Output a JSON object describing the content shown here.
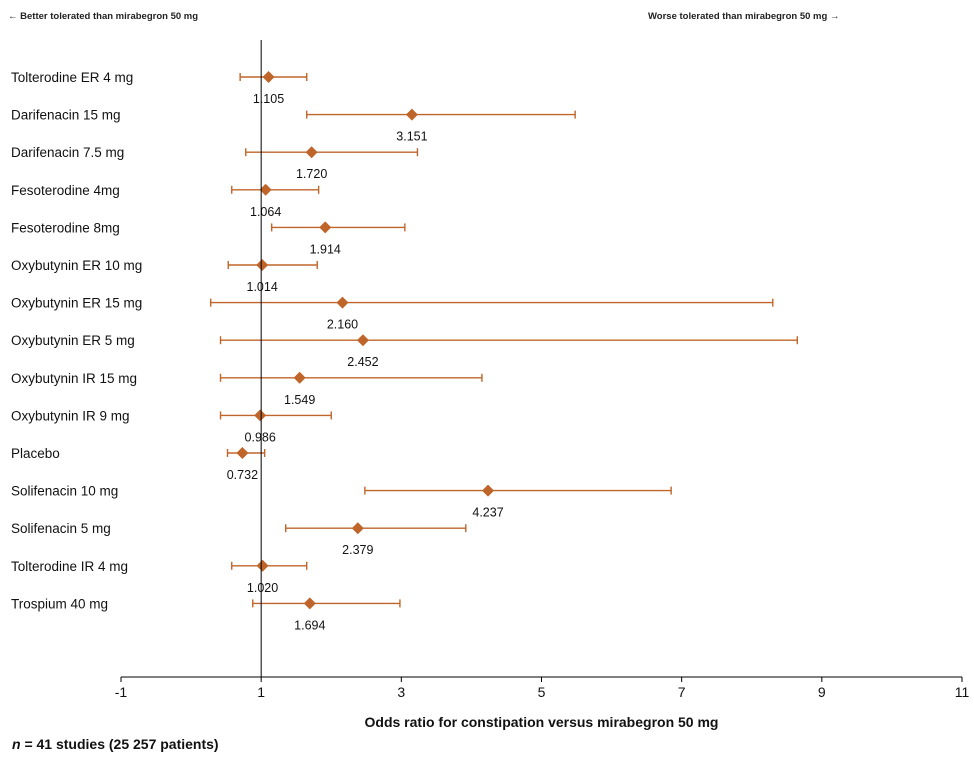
{
  "header": {
    "left_note": "← Better tolerated than mirabegron 50 mg",
    "right_note": "Worse tolerated than mirabegron 50 mg →"
  },
  "footnote": {
    "n_symbol": "n",
    "text": " = 41 studies (25 257 patients)"
  },
  "colors": {
    "marker": "#c0652a",
    "axis": "#000000"
  },
  "chart_data": {
    "type": "forest",
    "xlabel": "Odds ratio for constipation versus mirabegron 50 mg",
    "xlim": [
      -1,
      11
    ],
    "xticks": [
      -1,
      1,
      3,
      5,
      7,
      9,
      11
    ],
    "reference_line": 1,
    "grid": false,
    "rows": [
      {
        "label": "Tolterodine ER 4 mg",
        "or": 1.105,
        "or_label": "1.105",
        "ci": [
          0.7,
          1.65
        ]
      },
      {
        "label": "Darifenacin 15 mg",
        "or": 3.151,
        "or_label": "3.151",
        "ci": [
          1.65,
          5.48
        ]
      },
      {
        "label": "Darifenacin 7.5 mg",
        "or": 1.72,
        "or_label": "1.720",
        "ci": [
          0.78,
          3.23
        ]
      },
      {
        "label": "Fesoterodine 4mg",
        "or": 1.064,
        "or_label": "1.064",
        "ci": [
          0.58,
          1.82
        ]
      },
      {
        "label": "Fesoterodine 8mg",
        "or": 1.914,
        "or_label": "1.914",
        "ci": [
          1.15,
          3.05
        ]
      },
      {
        "label": "Oxybutynin ER 10 mg",
        "or": 1.014,
        "or_label": "1.014",
        "ci": [
          0.53,
          1.8
        ]
      },
      {
        "label": "Oxybutynin ER 15 mg",
        "or": 2.16,
        "or_label": "2.160",
        "ci": [
          0.28,
          8.3
        ]
      },
      {
        "label": "Oxybutynin ER 5 mg",
        "or": 2.452,
        "or_label": "2.452",
        "ci": [
          0.42,
          8.65
        ]
      },
      {
        "label": "Oxybutynin IR 15 mg",
        "or": 1.549,
        "or_label": "1.549",
        "ci": [
          0.42,
          4.15
        ]
      },
      {
        "label": "Oxybutynin IR 9 mg",
        "or": 0.986,
        "or_label": "0.986",
        "ci": [
          0.42,
          2.0
        ]
      },
      {
        "label": "Placebo",
        "or": 0.732,
        "or_label": "0.732",
        "ci": [
          0.52,
          1.05
        ]
      },
      {
        "label": "Solifenacin 10 mg",
        "or": 4.237,
        "or_label": "4.237",
        "ci": [
          2.48,
          6.85
        ]
      },
      {
        "label": "Solifenacin 5 mg",
        "or": 2.379,
        "or_label": "2.379",
        "ci": [
          1.35,
          3.92
        ]
      },
      {
        "label": "Tolterodine IR 4 mg",
        "or": 1.02,
        "or_label": "1.020",
        "ci": [
          0.58,
          1.65
        ]
      },
      {
        "label": "Trospium 40 mg",
        "or": 1.694,
        "or_label": "1.694",
        "ci": [
          0.88,
          2.98
        ]
      }
    ]
  }
}
